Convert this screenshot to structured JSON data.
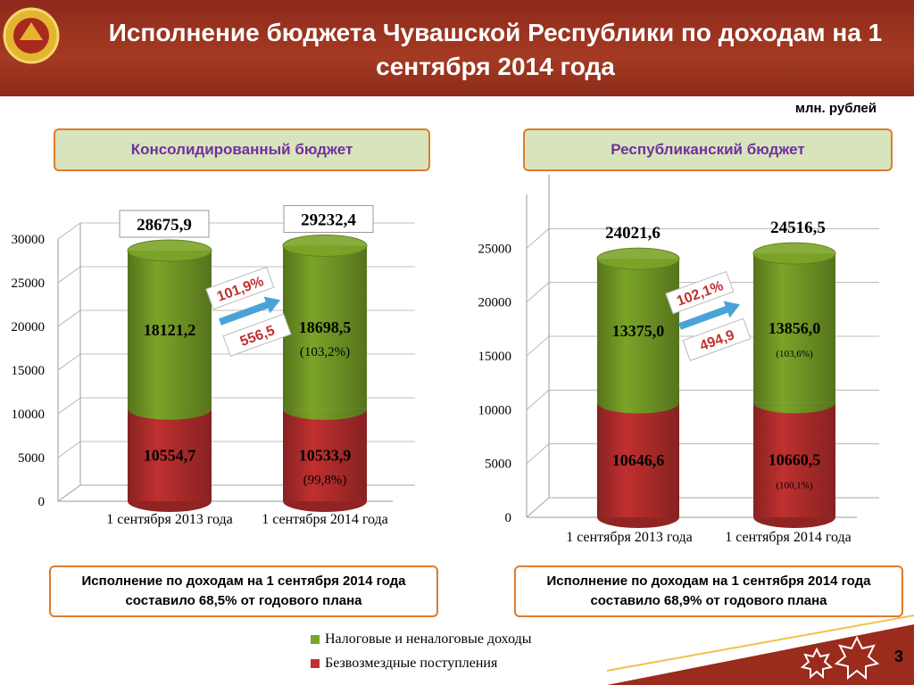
{
  "title": "Исполнение бюджета Чувашской Республики по доходам на 1 сентября 2014 года",
  "units": "млн. рублей",
  "page_number": 3,
  "chart_data": [
    {
      "type": "bar",
      "stacked": true,
      "subtitle": "Консолидированный бюджет",
      "note": "Исполнение по доходам на 1 сентября 2014 года составило 68,5% от годового плана",
      "categories": [
        "1 сентября 2013 года",
        "1 сентября 2014 года"
      ],
      "series": [
        {
          "name": "Безвозмездные поступления",
          "color": "#c0302f",
          "values": [
            10554.7,
            10533.9
          ],
          "value_labels": [
            "10554,7",
            "10533,9"
          ],
          "change": [
            null,
            99.8
          ],
          "change_labels": [
            null,
            "(99,8%)"
          ]
        },
        {
          "name": "Налоговые и неналоговые доходы",
          "color": "#7ba428",
          "values": [
            18121.2,
            18698.5
          ],
          "value_labels": [
            "18121,2",
            "18698,5"
          ],
          "change": [
            null,
            103.2
          ],
          "change_labels": [
            null,
            "(103,2%)"
          ]
        }
      ],
      "totals": [
        28675.9,
        29232.4
      ],
      "total_labels": [
        "28675,9",
        "29232,4"
      ],
      "total_boxes": true,
      "growth_percent": 101.9,
      "growth_percent_label": "101,9%",
      "growth_delta": 556.5,
      "growth_delta_label": "556,5",
      "ylim": [
        0,
        30000
      ],
      "yticks": [
        0,
        5000,
        10000,
        15000,
        20000,
        25000,
        30000
      ]
    },
    {
      "type": "bar",
      "stacked": true,
      "subtitle": "Республиканский бюджет",
      "note": "Исполнение по доходам на 1 сентября 2014 года составило 68,9% от годового плана",
      "categories": [
        "1 сентября 2013 года",
        "1 сентября 2014 года"
      ],
      "series": [
        {
          "color": "#c0302f",
          "values": [
            10646.6,
            10660.5
          ],
          "value_labels": [
            "10646,6",
            "10660,5"
          ],
          "change": [
            null,
            100.1
          ],
          "change_labels": [
            null,
            "(100,1%)"
          ]
        },
        {
          "color": "#7ba428",
          "values": [
            13375.0,
            13856.0
          ],
          "value_labels": [
            "13375,0",
            "13856,0"
          ],
          "change": [
            null,
            103.6
          ],
          "change_labels": [
            null,
            "(103,6%)"
          ]
        }
      ],
      "totals": [
        24021.6,
        24516.5
      ],
      "total_labels": [
        "24021,6",
        "24516,5"
      ],
      "total_boxes": false,
      "growth_percent": 102.1,
      "growth_percent_label": "102,1%",
      "growth_delta": 494.9,
      "growth_delta_label": "494,9",
      "ylim": [
        0,
        30000
      ],
      "yticks": [
        0,
        5000,
        10000,
        15000,
        20000,
        25000
      ]
    }
  ]
}
